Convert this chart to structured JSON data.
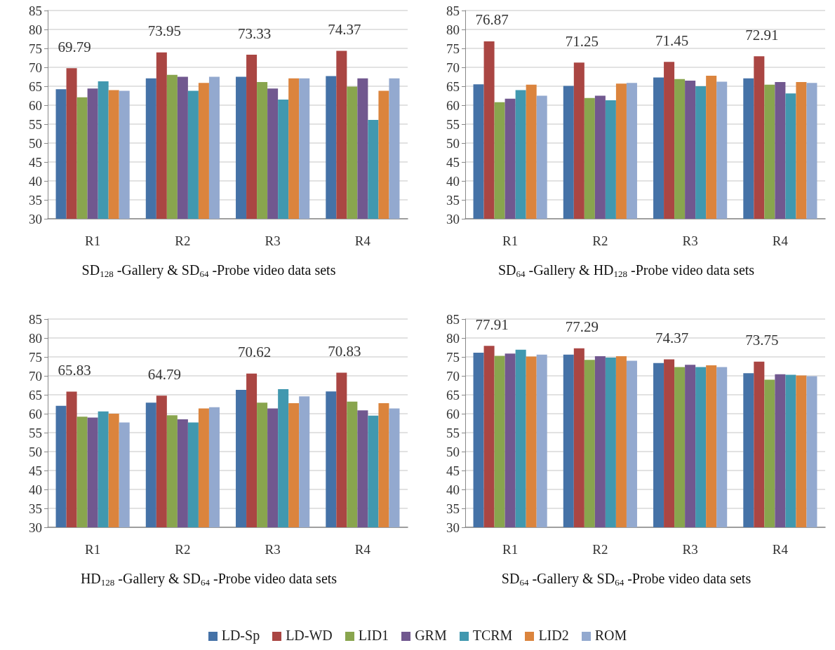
{
  "chart_data": [
    {
      "type": "bar",
      "title": "SD$_{128}$ -Gallery & SD$_{64}$ -Probe video data sets",
      "categories": [
        "R1",
        "R2",
        "R3",
        "R4"
      ],
      "ylim": [
        30,
        85
      ],
      "yticks": [
        30,
        35,
        40,
        45,
        50,
        55,
        60,
        65,
        70,
        75,
        80,
        85
      ],
      "grid": "y",
      "legend": "bottom",
      "series": [
        {
          "name": "LD-Sp",
          "color": "#4572a7",
          "values": [
            64.2,
            67.1,
            67.5,
            67.7
          ]
        },
        {
          "name": "LD-WD",
          "color": "#aa4643",
          "values": [
            69.79,
            73.95,
            73.33,
            74.37
          ],
          "value_labels": [
            "69.79",
            "73.95",
            "73.33",
            "74.37"
          ]
        },
        {
          "name": "LID1",
          "color": "#89a54e",
          "values": [
            62.1,
            68.0,
            66.1,
            64.9
          ]
        },
        {
          "name": "GRM",
          "color": "#71588f",
          "values": [
            64.4,
            67.5,
            64.4,
            67.1
          ]
        },
        {
          "name": "TCRM",
          "color": "#4198af",
          "values": [
            66.3,
            63.8,
            61.5,
            56.1
          ]
        },
        {
          "name": "LID2",
          "color": "#db843d",
          "values": [
            64.0,
            65.9,
            67.1,
            63.8
          ]
        },
        {
          "name": "ROM",
          "color": "#93a9cf",
          "values": [
            63.8,
            67.5,
            67.1,
            67.1
          ]
        }
      ]
    },
    {
      "type": "bar",
      "title": "SD$_{64}$ -Gallery & HD$_{128}$ -Probe video data sets",
      "categories": [
        "R1",
        "R2",
        "R3",
        "R4"
      ],
      "ylim": [
        30,
        85
      ],
      "yticks": [
        30,
        35,
        40,
        45,
        50,
        55,
        60,
        65,
        70,
        75,
        80,
        85
      ],
      "grid": "y",
      "series": [
        {
          "color": "#4572a7",
          "values": [
            65.5,
            65.1,
            67.3,
            67.1
          ]
        },
        {
          "color": "#aa4643",
          "values": [
            76.87,
            71.25,
            71.45,
            72.91
          ],
          "value_labels": [
            "76.87",
            "71.25",
            "71.45",
            "72.91"
          ]
        },
        {
          "color": "#89a54e",
          "values": [
            60.8,
            61.9,
            66.9,
            65.4
          ]
        },
        {
          "color": "#71588f",
          "values": [
            61.7,
            62.5,
            66.5,
            66.1
          ]
        },
        {
          "color": "#4198af",
          "values": [
            64.0,
            61.3,
            65.0,
            63.1
          ]
        },
        {
          "color": "#db843d",
          "values": [
            65.4,
            65.7,
            67.8,
            66.1
          ]
        },
        {
          "color": "#93a9cf",
          "values": [
            62.5,
            65.9,
            66.2,
            65.9
          ]
        }
      ]
    },
    {
      "type": "bar",
      "title": "HD$_{128}$ -Gallery & SD$_{64}$ -Probe video data sets",
      "categories": [
        "R1",
        "R2",
        "R3",
        "R4"
      ],
      "ylim": [
        30,
        85
      ],
      "yticks": [
        30,
        35,
        40,
        45,
        50,
        55,
        60,
        65,
        70,
        75,
        80,
        85
      ],
      "grid": "y",
      "series": [
        {
          "color": "#4572a7",
          "values": [
            62.1,
            62.9,
            66.3,
            65.9
          ]
        },
        {
          "color": "#aa4643",
          "values": [
            65.83,
            64.79,
            70.62,
            70.83
          ],
          "value_labels": [
            "65.83",
            "64.79",
            "70.62",
            "70.83"
          ]
        },
        {
          "color": "#89a54e",
          "values": [
            59.2,
            59.6,
            62.9,
            63.2
          ]
        },
        {
          "color": "#71588f",
          "values": [
            59.0,
            58.5,
            61.4,
            60.9
          ]
        },
        {
          "color": "#4198af",
          "values": [
            60.6,
            57.7,
            66.5,
            59.5
          ]
        },
        {
          "color": "#db843d",
          "values": [
            60.0,
            61.4,
            62.8,
            62.8
          ]
        },
        {
          "color": "#93a9cf",
          "values": [
            57.7,
            61.7,
            64.6,
            61.4
          ]
        }
      ]
    },
    {
      "type": "bar",
      "title": "SD$_{64}$ -Gallery & SD$_{64}$ -Probe video data sets",
      "categories": [
        "R1",
        "R2",
        "R3",
        "R4"
      ],
      "ylim": [
        30,
        85
      ],
      "yticks": [
        30,
        35,
        40,
        45,
        50,
        55,
        60,
        65,
        70,
        75,
        80,
        85
      ],
      "grid": "y",
      "series": [
        {
          "color": "#4572a7",
          "values": [
            76.1,
            75.6,
            73.4,
            70.7
          ]
        },
        {
          "color": "#aa4643",
          "values": [
            77.91,
            77.29,
            74.37,
            73.75
          ],
          "value_labels": [
            "77.91",
            "77.29",
            "74.37",
            "73.75"
          ]
        },
        {
          "color": "#89a54e",
          "values": [
            75.3,
            74.2,
            72.3,
            69.0
          ]
        },
        {
          "color": "#71588f",
          "values": [
            75.9,
            75.2,
            72.9,
            70.4
          ]
        },
        {
          "color": "#4198af",
          "values": [
            76.9,
            74.8,
            72.3,
            70.3
          ]
        },
        {
          "color": "#db843d",
          "values": [
            75.1,
            75.2,
            72.8,
            70.1
          ]
        },
        {
          "color": "#93a9cf",
          "values": [
            75.6,
            74.0,
            72.3,
            69.9
          ]
        }
      ]
    }
  ]
}
